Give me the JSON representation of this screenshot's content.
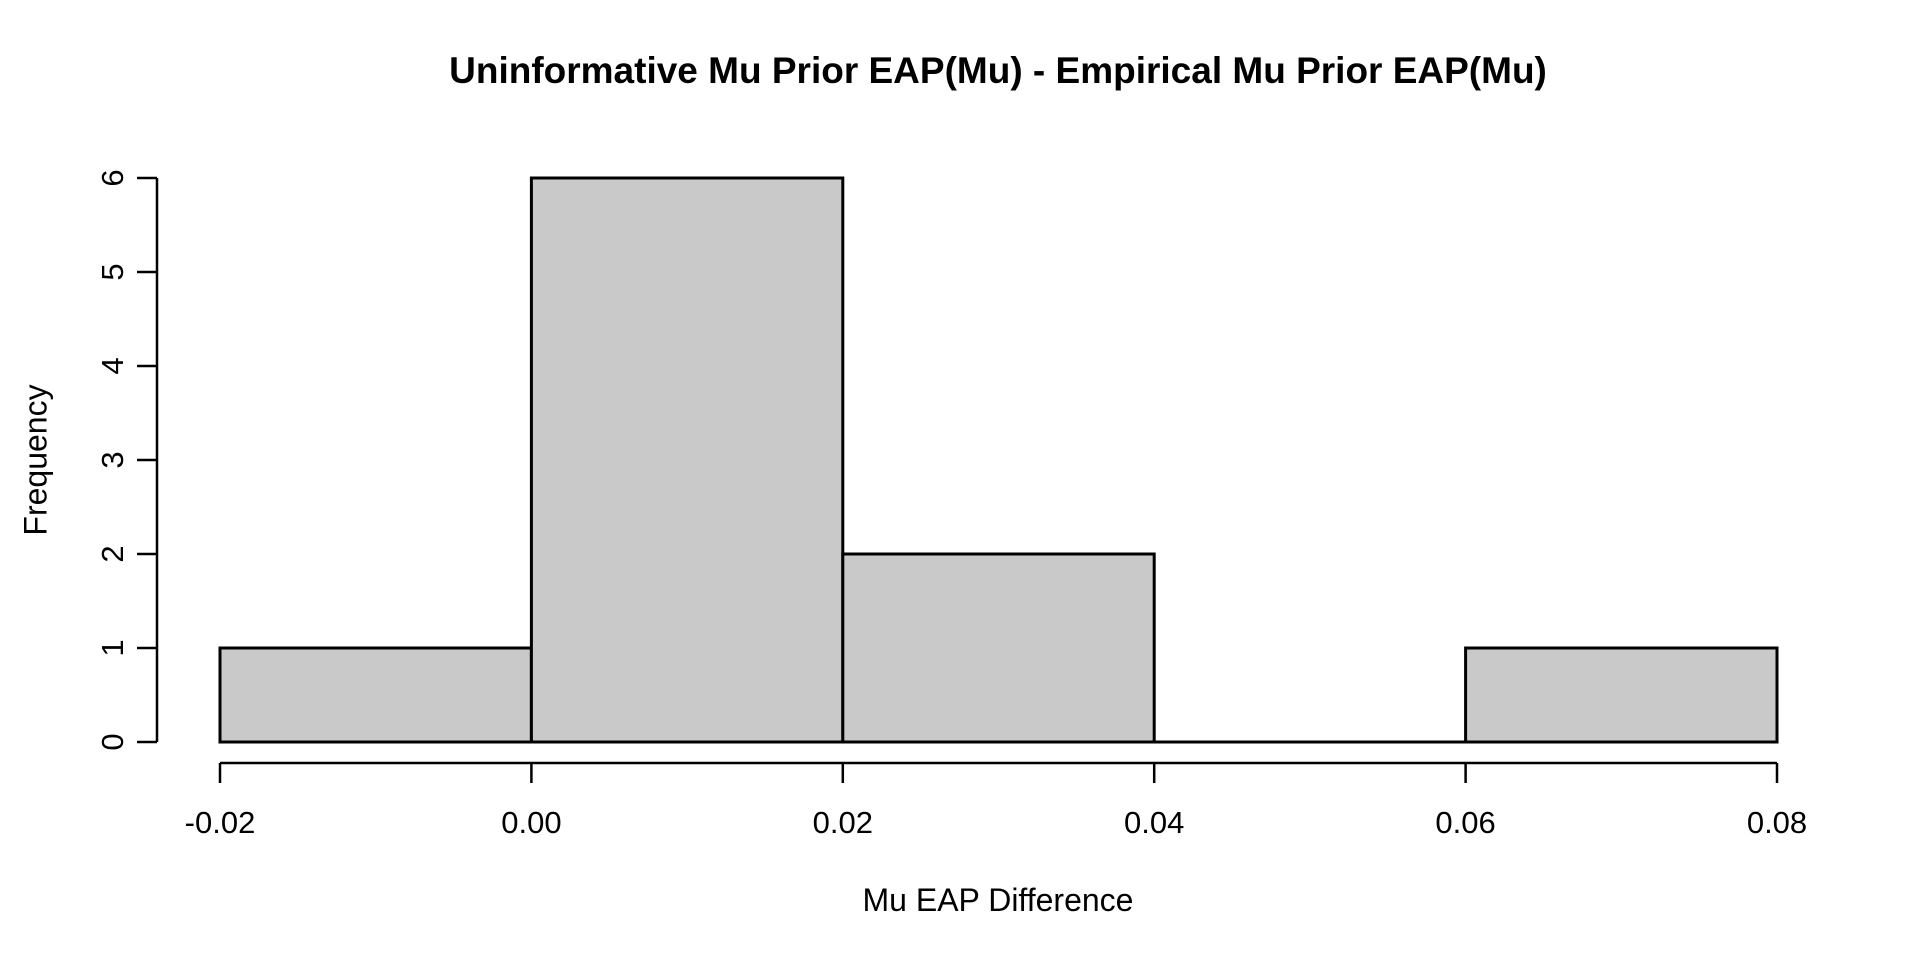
{
  "chart_data": {
    "type": "bar",
    "subtype": "histogram",
    "title": "Uninformative Mu Prior EAP(Mu) - Empirical Mu Prior EAP(Mu)",
    "xlabel": "Mu EAP Difference",
    "ylabel": "Frequency",
    "bin_edges": [
      -0.02,
      0.0,
      0.02,
      0.04,
      0.06,
      0.08
    ],
    "counts": [
      1,
      6,
      2,
      0,
      1
    ],
    "x_ticks": [
      {
        "value": -0.02,
        "label": "-0.02"
      },
      {
        "value": 0.0,
        "label": "0.00"
      },
      {
        "value": 0.02,
        "label": "0.02"
      },
      {
        "value": 0.04,
        "label": "0.04"
      },
      {
        "value": 0.06,
        "label": "0.06"
      },
      {
        "value": 0.08,
        "label": "0.08"
      }
    ],
    "y_ticks": [
      {
        "value": 0,
        "label": "0"
      },
      {
        "value": 1,
        "label": "1"
      },
      {
        "value": 2,
        "label": "2"
      },
      {
        "value": 3,
        "label": "3"
      },
      {
        "value": 4,
        "label": "4"
      },
      {
        "value": 5,
        "label": "5"
      },
      {
        "value": 6,
        "label": "6"
      }
    ],
    "xlim": [
      -0.02,
      0.08
    ],
    "ylim": [
      0,
      6
    ],
    "grid": false,
    "legend": null,
    "colors": {
      "bar_fill": "#c9c9c9",
      "bar_border": "#000000",
      "axis": "#000000",
      "text": "#000000",
      "background": "#ffffff"
    }
  }
}
